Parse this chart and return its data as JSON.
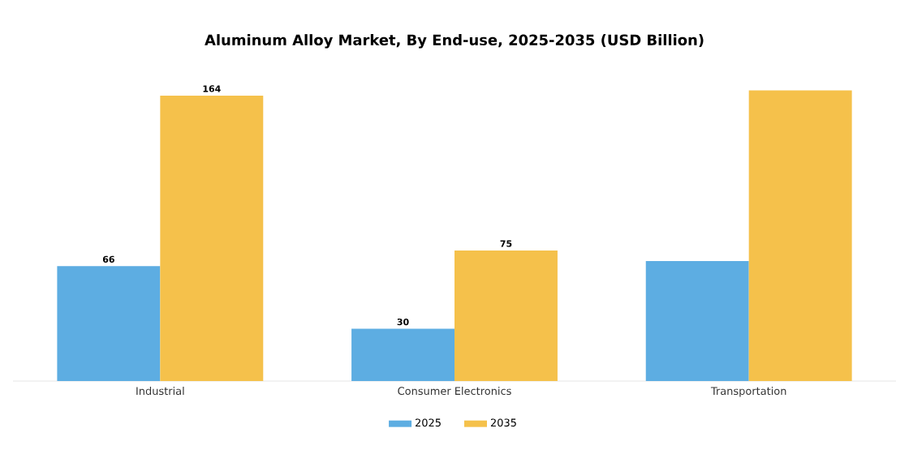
{
  "chart_data": {
    "type": "bar",
    "title": "Aluminum Alloy Market, By End-use, 2025-2035 (USD Billion)",
    "categories": [
      "Industrial",
      "Consumer Electronics",
      "Transportation"
    ],
    "series": [
      {
        "name": "2025",
        "color": "#5dade2",
        "values": [
          66,
          30,
          69
        ],
        "value_labels": [
          "66",
          "30",
          null
        ]
      },
      {
        "name": "2035",
        "color": "#f5c14b",
        "values": [
          164,
          75,
          167
        ],
        "value_labels": [
          "164",
          "75",
          null
        ]
      }
    ],
    "legend": "bottom"
  }
}
